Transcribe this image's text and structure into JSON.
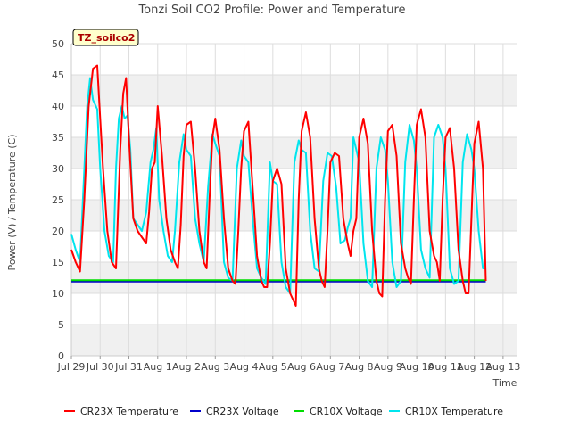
{
  "chart_data": {
    "type": "line",
    "title": "Tonzi Soil CO2 Profile: Power and Temperature",
    "xlabel": "Time",
    "ylabel": "Power (V) / Temperature (C)",
    "ylim": [
      0,
      50
    ],
    "yticks": [
      0,
      5,
      10,
      15,
      20,
      25,
      30,
      35,
      40,
      45,
      50
    ],
    "xlim": [
      0,
      15.5
    ],
    "xtick_labels": [
      "Jul 29",
      "Jul 30",
      "Jul 31",
      "Aug 1",
      "Aug 2",
      "Aug 3",
      "Aug 4",
      "Aug 5",
      "Aug 6",
      "Aug 7",
      "Aug 8",
      "Aug 9",
      "Aug 10",
      "Aug 11",
      "Aug 12",
      "Aug 13"
    ],
    "badge": "TZ_soilco2",
    "grid": true,
    "legend_position": "bottom",
    "series": [
      {
        "name": "CR23X Temperature",
        "color": "#ff0000",
        "x": [
          0.0,
          0.15,
          0.3,
          0.45,
          0.6,
          0.75,
          0.9,
          1.0,
          1.1,
          1.25,
          1.4,
          1.55,
          1.7,
          1.8,
          1.9,
          2.0,
          2.15,
          2.3,
          2.45,
          2.6,
          2.7,
          2.8,
          2.9,
          3.0,
          3.15,
          3.3,
          3.45,
          3.6,
          3.7,
          3.8,
          3.9,
          4.0,
          4.15,
          4.3,
          4.45,
          4.6,
          4.7,
          4.8,
          4.9,
          5.0,
          5.15,
          5.3,
          5.45,
          5.6,
          5.7,
          5.8,
          5.9,
          6.0,
          6.15,
          6.3,
          6.45,
          6.6,
          6.7,
          6.8,
          6.9,
          7.0,
          7.15,
          7.3,
          7.45,
          7.6,
          7.7,
          7.8,
          7.9,
          8.0,
          8.15,
          8.3,
          8.45,
          8.6,
          8.7,
          8.8,
          8.9,
          9.0,
          9.15,
          9.3,
          9.45,
          9.6,
          9.7,
          9.8,
          9.9,
          10.0,
          10.15,
          10.3,
          10.45,
          10.6,
          10.7,
          10.8,
          10.9,
          11.0,
          11.15,
          11.3,
          11.45,
          11.6,
          11.7,
          11.8,
          11.9,
          12.0,
          12.15,
          12.3,
          12.45,
          12.6,
          12.7,
          12.8,
          12.9,
          13.0,
          13.15,
          13.3,
          13.45,
          13.6,
          13.7,
          13.8,
          13.9,
          14.0,
          14.15,
          14.3,
          14.4
        ],
        "y": [
          17.0,
          15.0,
          13.5,
          25.0,
          40.0,
          46.0,
          46.5,
          38.0,
          30.0,
          20.0,
          15.0,
          14.0,
          33.0,
          42.0,
          44.5,
          35.0,
          22.0,
          20.0,
          19.0,
          18.0,
          23.0,
          30.0,
          31.0,
          40.0,
          32.0,
          22.0,
          17.0,
          15.0,
          14.0,
          21.0,
          32.0,
          37.0,
          37.5,
          30.0,
          20.0,
          15.0,
          14.0,
          25.0,
          35.0,
          38.0,
          33.0,
          22.0,
          14.0,
          12.0,
          11.5,
          20.0,
          30.0,
          36.0,
          37.5,
          27.0,
          16.0,
          12.0,
          11.0,
          11.0,
          18.0,
          28.0,
          30.0,
          27.5,
          14.0,
          10.0,
          9.0,
          8.0,
          25.0,
          36.0,
          39.0,
          35.0,
          22.0,
          14.0,
          12.0,
          11.0,
          20.0,
          31.0,
          32.5,
          32.0,
          22.0,
          18.0,
          16.0,
          20.0,
          22.0,
          35.0,
          38.0,
          34.0,
          20.0,
          12.0,
          10.0,
          9.5,
          25.0,
          36.0,
          37.0,
          32.0,
          18.0,
          14.0,
          12.5,
          11.5,
          25.0,
          37.0,
          39.5,
          35.0,
          20.0,
          16.0,
          15.0,
          12.0,
          25.0,
          35.0,
          36.5,
          30.0,
          17.0,
          12.0,
          10.0,
          10.0,
          22.0,
          34.0,
          37.5,
          30.0,
          12.0
        ]
      },
      {
        "name": "CR23X Voltage",
        "color": "#0000cc",
        "x": [
          0.0,
          14.4
        ],
        "y": [
          11.9,
          11.9
        ]
      },
      {
        "name": "CR10X Voltage",
        "color": "#00dd00",
        "x": [
          0.0,
          14.4
        ],
        "y": [
          12.1,
          12.1
        ]
      },
      {
        "name": "CR10X Temperature",
        "color": "#00e5ee",
        "x": [
          0.0,
          0.15,
          0.3,
          0.45,
          0.55,
          0.65,
          0.75,
          0.9,
          1.0,
          1.15,
          1.3,
          1.45,
          1.55,
          1.65,
          1.75,
          1.85,
          1.95,
          2.05,
          2.15,
          2.3,
          2.45,
          2.6,
          2.75,
          2.85,
          2.95,
          3.05,
          3.2,
          3.35,
          3.5,
          3.6,
          3.75,
          3.9,
          4.0,
          4.15,
          4.3,
          4.45,
          4.6,
          4.75,
          4.9,
          5.0,
          5.15,
          5.3,
          5.45,
          5.6,
          5.75,
          5.9,
          6.0,
          6.15,
          6.3,
          6.45,
          6.6,
          6.75,
          6.9,
          7.0,
          7.15,
          7.3,
          7.45,
          7.6,
          7.75,
          7.9,
          8.0,
          8.15,
          8.3,
          8.45,
          8.6,
          8.75,
          8.9,
          9.05,
          9.2,
          9.35,
          9.5,
          9.6,
          9.7,
          9.8,
          9.9,
          10.0,
          10.15,
          10.3,
          10.45,
          10.6,
          10.75,
          10.9,
          11.0,
          11.15,
          11.3,
          11.45,
          11.6,
          11.75,
          11.9,
          12.0,
          12.15,
          12.3,
          12.45,
          12.6,
          12.75,
          12.9,
          13.0,
          13.15,
          13.3,
          13.45,
          13.6,
          13.75,
          13.9,
          14.0,
          14.15,
          14.3,
          14.4
        ],
        "y": [
          19.5,
          17.0,
          15.0,
          30.0,
          40.0,
          44.5,
          41.0,
          39.5,
          30.0,
          20.0,
          16.0,
          15.0,
          30.0,
          38.0,
          40.0,
          38.0,
          38.5,
          33.0,
          22.0,
          21.0,
          20.0,
          23.0,
          31.0,
          33.0,
          36.5,
          25.0,
          20.0,
          16.0,
          15.0,
          20.0,
          31.0,
          35.5,
          33.0,
          32.0,
          22.0,
          18.0,
          15.0,
          27.0,
          35.5,
          34.0,
          32.0,
          15.0,
          12.5,
          12.0,
          30.0,
          34.5,
          32.0,
          31.0,
          22.0,
          14.0,
          12.5,
          11.5,
          31.0,
          28.0,
          27.5,
          15.0,
          11.0,
          10.0,
          31.0,
          34.5,
          33.0,
          32.5,
          20.0,
          14.0,
          13.5,
          28.0,
          32.5,
          32.0,
          27.0,
          18.0,
          18.5,
          20.5,
          22.0,
          35.0,
          33.0,
          31.0,
          18.0,
          12.0,
          11.0,
          30.0,
          35.0,
          33.0,
          28.0,
          15.0,
          11.0,
          12.0,
          31.0,
          37.0,
          34.5,
          30.0,
          17.0,
          14.0,
          12.5,
          35.0,
          37.0,
          35.0,
          30.0,
          14.0,
          11.5,
          12.0,
          31.0,
          35.5,
          33.0,
          30.0,
          20.0,
          14.0,
          14.0
        ]
      }
    ]
  }
}
